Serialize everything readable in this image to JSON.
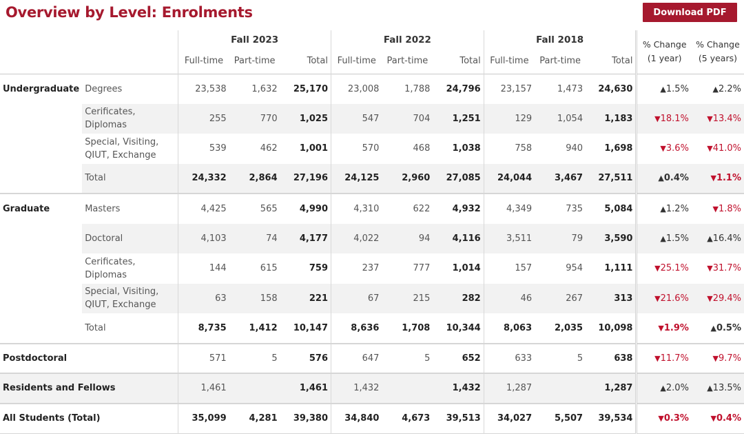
{
  "title": "Overview by Level: Enrolments",
  "download_label": "Download PDF",
  "periods": [
    "Fall 2023",
    "Fall 2022",
    "Fall 2018"
  ],
  "sub_headers": {
    "full_time": "Full-time",
    "part_time": "Part-time",
    "total": "Total"
  },
  "pct_headers": {
    "one_year": [
      "% Change",
      "(1 year)"
    ],
    "five_years": [
      "% Change",
      "(5 years)"
    ]
  },
  "rows": [
    {
      "level": "Undergraduate",
      "sub": [
        "Degrees"
      ],
      "values": [
        "23,538",
        "1,632",
        "25,170",
        "23,008",
        "1,788",
        "24,796",
        "23,157",
        "1,473",
        "24,630"
      ],
      "pct1": {
        "dir": "up",
        "text": "1.5%"
      },
      "pct5": {
        "dir": "up",
        "text": "2.2%"
      }
    },
    {
      "level": "",
      "sub": [
        "Cerificates, Diplomas"
      ],
      "values": [
        "255",
        "770",
        "1,025",
        "547",
        "704",
        "1,251",
        "129",
        "1,054",
        "1,183"
      ],
      "pct1": {
        "dir": "down",
        "text": "18.1%"
      },
      "pct5": {
        "dir": "down",
        "text": "13.4%"
      }
    },
    {
      "level": "",
      "sub": [
        "Special, Visiting,",
        "QIUT, Exchange"
      ],
      "values": [
        "539",
        "462",
        "1,001",
        "570",
        "468",
        "1,038",
        "758",
        "940",
        "1,698"
      ],
      "pct1": {
        "dir": "down",
        "text": "3.6%"
      },
      "pct5": {
        "dir": "down",
        "text": "41.0%"
      }
    },
    {
      "level": "",
      "sub": [
        "Total"
      ],
      "values": [
        "24,332",
        "2,864",
        "27,196",
        "24,125",
        "2,960",
        "27,085",
        "24,044",
        "3,467",
        "27,511"
      ],
      "pct1": {
        "dir": "up",
        "text": "0.4%"
      },
      "pct5": {
        "dir": "down",
        "text": "1.1%"
      }
    },
    {
      "level": "Graduate",
      "sub": [
        "Masters"
      ],
      "values": [
        "4,425",
        "565",
        "4,990",
        "4,310",
        "622",
        "4,932",
        "4,349",
        "735",
        "5,084"
      ],
      "pct1": {
        "dir": "up",
        "text": "1.2%"
      },
      "pct5": {
        "dir": "down",
        "text": "1.8%"
      }
    },
    {
      "level": "",
      "sub": [
        "Doctoral"
      ],
      "values": [
        "4,103",
        "74",
        "4,177",
        "4,022",
        "94",
        "4,116",
        "3,511",
        "79",
        "3,590"
      ],
      "pct1": {
        "dir": "up",
        "text": "1.5%"
      },
      "pct5": {
        "dir": "up",
        "text": "16.4%"
      }
    },
    {
      "level": "",
      "sub": [
        "Cerificates, Diplomas"
      ],
      "values": [
        "144",
        "615",
        "759",
        "237",
        "777",
        "1,014",
        "157",
        "954",
        "1,111"
      ],
      "pct1": {
        "dir": "down",
        "text": "25.1%"
      },
      "pct5": {
        "dir": "down",
        "text": "31.7%"
      }
    },
    {
      "level": "",
      "sub": [
        "Special, Visiting,",
        "QIUT, Exchange"
      ],
      "values": [
        "63",
        "158",
        "221",
        "67",
        "215",
        "282",
        "46",
        "267",
        "313"
      ],
      "pct1": {
        "dir": "down",
        "text": "21.6%"
      },
      "pct5": {
        "dir": "down",
        "text": "29.4%"
      }
    },
    {
      "level": "",
      "sub": [
        "Total"
      ],
      "values": [
        "8,735",
        "1,412",
        "10,147",
        "8,636",
        "1,708",
        "10,344",
        "8,063",
        "2,035",
        "10,098"
      ],
      "pct1": {
        "dir": "down",
        "text": "1.9%"
      },
      "pct5": {
        "dir": "up",
        "text": "0.5%"
      }
    },
    {
      "level": "Postdoctoral",
      "sub": [],
      "values": [
        "571",
        "5",
        "576",
        "647",
        "5",
        "652",
        "633",
        "5",
        "638"
      ],
      "pct1": {
        "dir": "down",
        "text": "11.7%"
      },
      "pct5": {
        "dir": "down",
        "text": "9.7%"
      }
    },
    {
      "level": "Residents and Fellows",
      "sub": [],
      "values": [
        "1,461",
        "",
        "1,461",
        "1,432",
        "",
        "1,432",
        "1,287",
        "",
        "1,287"
      ],
      "pct1": {
        "dir": "up",
        "text": "2.0%"
      },
      "pct5": {
        "dir": "up",
        "text": "13.5%"
      }
    },
    {
      "level": "All Students (Total)",
      "sub": [],
      "values": [
        "35,099",
        "4,281",
        "39,380",
        "34,840",
        "4,673",
        "39,513",
        "34,027",
        "5,507",
        "39,534"
      ],
      "pct1": {
        "dir": "down",
        "text": "0.3%"
      },
      "pct5": {
        "dir": "down",
        "text": "0.4%"
      }
    }
  ],
  "colors": {
    "brand": "#a6192e",
    "down": "#c0112d",
    "up": "#333333",
    "shade": "#f2f2f2"
  }
}
